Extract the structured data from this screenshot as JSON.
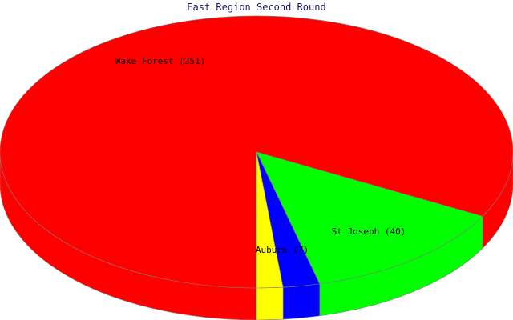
{
  "chart_data": {
    "type": "pie",
    "title": "East Region Second Round",
    "slices": [
      {
        "label": "Wake Forest",
        "value": 251,
        "color": "#ff0000",
        "display": "Wake Forest (251)"
      },
      {
        "label": "St Joseph",
        "value": 40,
        "color": "#00ff00",
        "display": "St Joseph (40)"
      },
      {
        "label": "Auburn",
        "value": 7,
        "color": "#0000ff",
        "display": "Auburn (7)"
      },
      {
        "label": "",
        "value": 5,
        "color": "#ffff00",
        "display": ""
      }
    ],
    "style": "3d",
    "legend": "none"
  }
}
